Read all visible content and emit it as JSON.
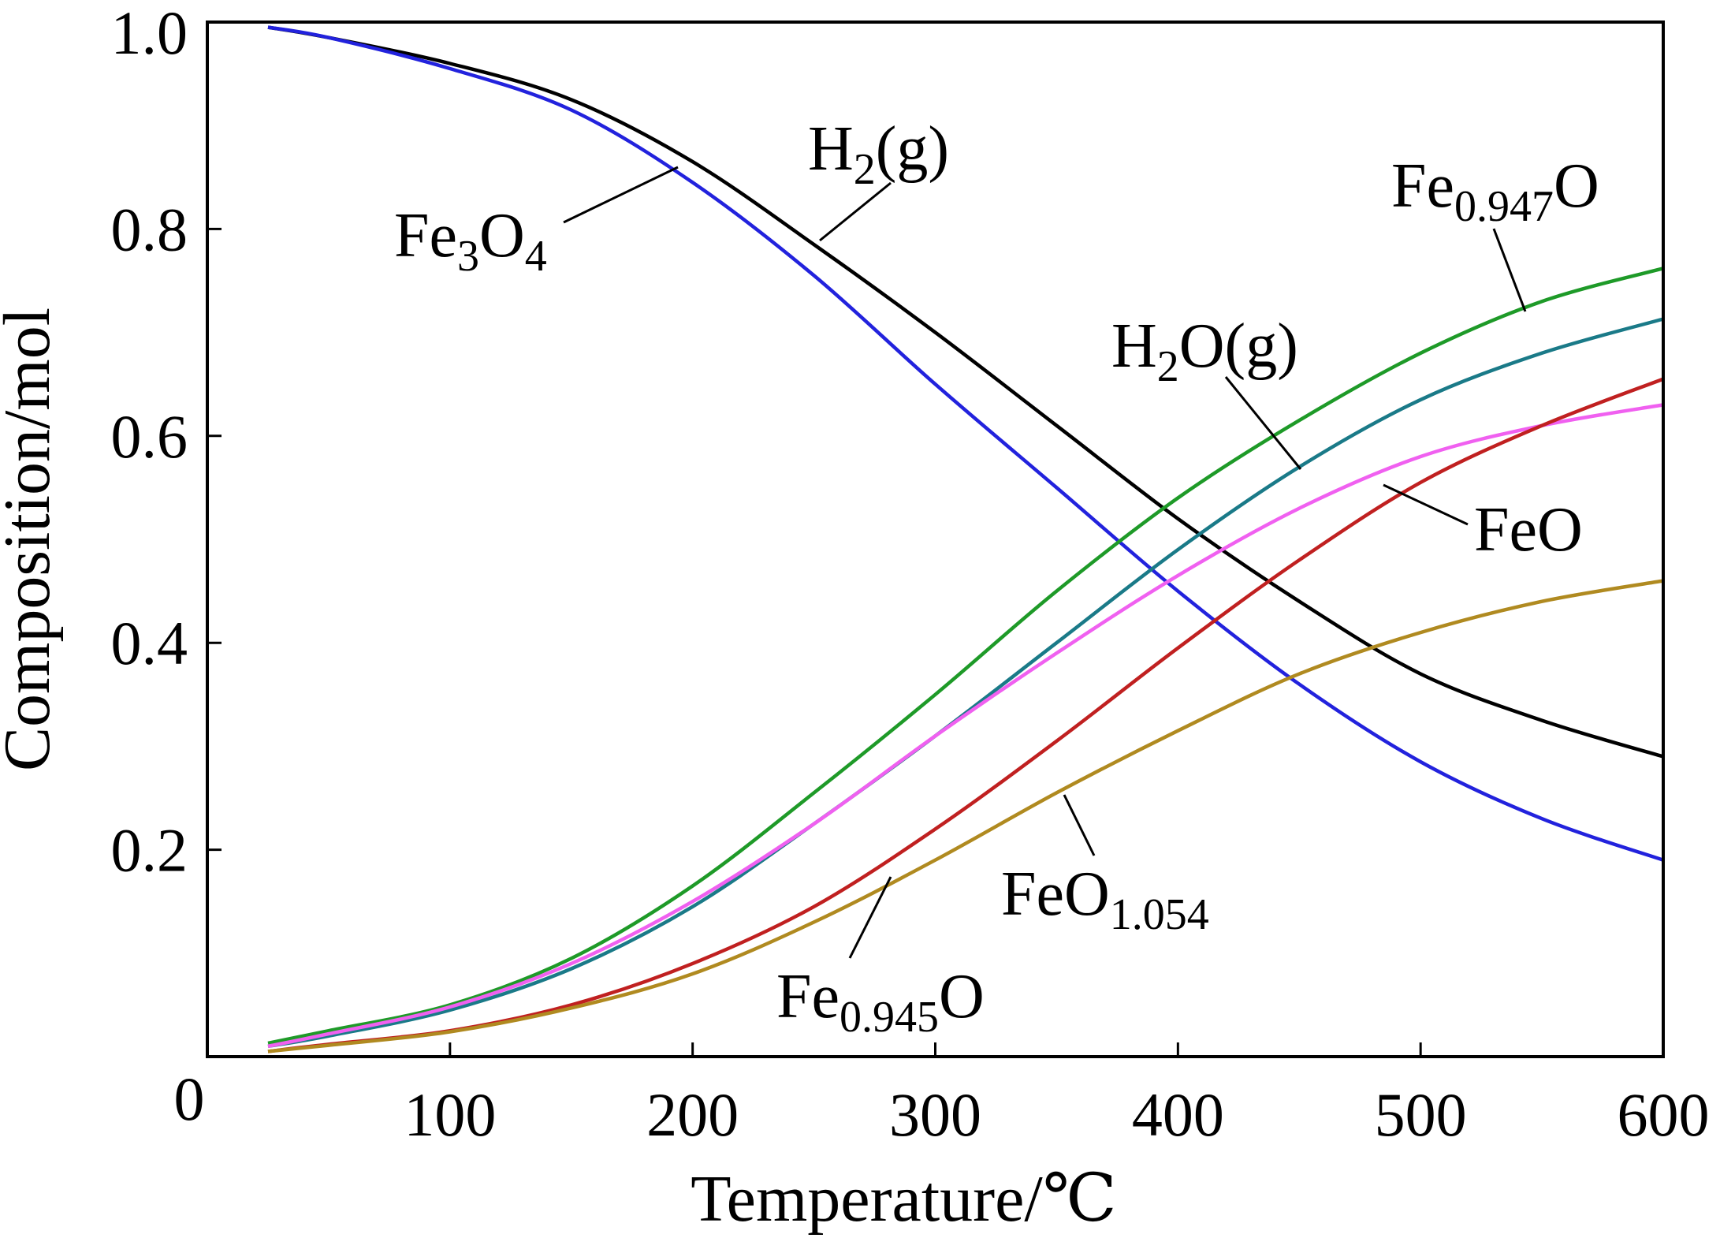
{
  "chart_data": {
    "type": "line",
    "title": "",
    "xlabel": "Temperature/℃",
    "ylabel": "Composition/mol",
    "xlim": [
      0,
      600
    ],
    "ylim": [
      0,
      1.0
    ],
    "xticks": [
      100,
      200,
      300,
      400,
      500,
      600
    ],
    "xtick_labels": [
      "100",
      "200",
      "300",
      "400",
      "500",
      "600"
    ],
    "yticks": [
      0.2,
      0.4,
      0.6,
      0.8,
      1.0
    ],
    "ytick_labels": [
      "0.2",
      "0.4",
      "0.6",
      "0.8",
      "1.0"
    ],
    "origin_label": "0",
    "grid": false,
    "legend": "none",
    "x": [
      25,
      50,
      100,
      150,
      200,
      250,
      300,
      350,
      400,
      450,
      500,
      550,
      600
    ],
    "series": [
      {
        "name": "H2(g)",
        "color": "#000000",
        "values": [
          0.995,
          0.985,
          0.96,
          0.925,
          0.865,
          0.785,
          0.7,
          0.61,
          0.52,
          0.44,
          0.37,
          0.325,
          0.29
        ]
      },
      {
        "name": "Fe3O4",
        "color": "#2222dd",
        "values": [
          0.995,
          0.985,
          0.955,
          0.915,
          0.845,
          0.755,
          0.65,
          0.55,
          0.45,
          0.36,
          0.285,
          0.23,
          0.19
        ]
      },
      {
        "name": "Fe0.947O",
        "color": "#1e9a28",
        "values": [
          0.013,
          0.025,
          0.05,
          0.095,
          0.165,
          0.255,
          0.35,
          0.45,
          0.54,
          0.615,
          0.68,
          0.73,
          0.762
        ]
      },
      {
        "name": "H2O(g)",
        "color": "#1a7a88",
        "values": [
          0.01,
          0.02,
          0.045,
          0.085,
          0.145,
          0.225,
          0.31,
          0.4,
          0.49,
          0.57,
          0.635,
          0.68,
          0.713
        ]
      },
      {
        "name": "FeO",
        "color": "#f060f0",
        "values": [
          0.01,
          0.022,
          0.048,
          0.09,
          0.15,
          0.225,
          0.31,
          0.39,
          0.465,
          0.53,
          0.58,
          0.61,
          0.63
        ]
      },
      {
        "name": "Fe0.945O",
        "color": "#c02020",
        "values": [
          0.005,
          0.012,
          0.025,
          0.05,
          0.09,
          0.145,
          0.22,
          0.305,
          0.395,
          0.48,
          0.555,
          0.61,
          0.655
        ]
      },
      {
        "name": "FeO1.054",
        "color": "#b08a20",
        "values": [
          0.005,
          0.011,
          0.024,
          0.047,
          0.08,
          0.13,
          0.19,
          0.255,
          0.315,
          0.37,
          0.41,
          0.44,
          0.46
        ]
      }
    ],
    "labels": [
      {
        "series": "H2(g)",
        "base": "H",
        "sub": "2",
        "tail": "(g)"
      },
      {
        "series": "Fe3O4",
        "base": "Fe",
        "sub": "3",
        "tail": "O",
        "sub2": "4"
      },
      {
        "series": "Fe0.947O",
        "base": "Fe",
        "sub": "0.947",
        "tail": "O"
      },
      {
        "series": "H2O(g)",
        "base": "H",
        "sub": "2",
        "tail": "O(g)"
      },
      {
        "series": "FeO",
        "base": "FeO",
        "sub": "",
        "tail": ""
      },
      {
        "series": "Fe0.945O",
        "base": "Fe",
        "sub": "0.945",
        "tail": "O"
      },
      {
        "series": "FeO1.054",
        "base": "FeO",
        "sub": "1.054",
        "tail": ""
      }
    ]
  }
}
